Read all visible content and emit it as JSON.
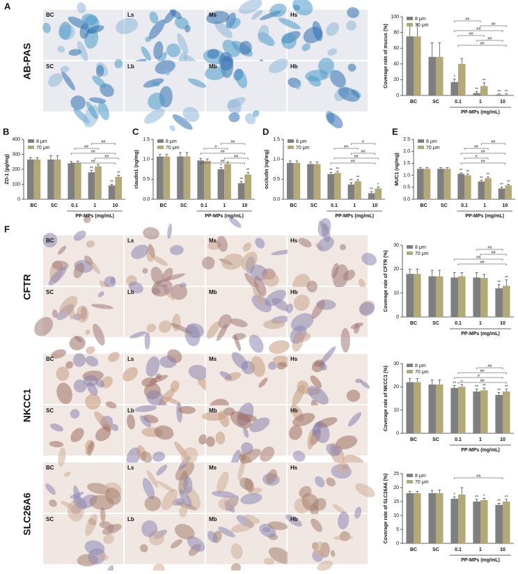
{
  "figure": {
    "panel_labels": [
      "A",
      "B",
      "C",
      "D",
      "E",
      "F"
    ],
    "stains": [
      {
        "name": "AB-PAS",
        "images": [
          [
            "BC",
            "Ls",
            "Ms",
            "Hs"
          ],
          [
            "SC",
            "Lb",
            "Mb",
            "Hb"
          ]
        ]
      },
      {
        "name": "CFTR",
        "images": [
          [
            "BC",
            "Ls",
            "Ms",
            "Hs"
          ],
          [
            "SC",
            "Lb",
            "Mb",
            "Hb"
          ]
        ]
      },
      {
        "name": "NKCC1",
        "images": [
          [
            "BC",
            "Ls",
            "Ms",
            "Hs"
          ],
          [
            "SC",
            "Lb",
            "Mb",
            "Hb"
          ]
        ]
      },
      {
        "name": "SLC26A6",
        "images": [
          [
            "BC",
            "Ls",
            "Ms",
            "Hs"
          ],
          [
            "SC",
            "Lb",
            "Mb",
            "Hb"
          ]
        ]
      }
    ]
  },
  "chart_data": [
    {
      "type": "bar",
      "y_label": "Coverage rate of mucus (%)",
      "x_label": "PP-MPs (mg/mL)",
      "categories": [
        "BC",
        "SC",
        "0.1",
        "1",
        "10"
      ],
      "ylim": [
        0,
        100
      ],
      "yticks": [
        0,
        20,
        40,
        60,
        80,
        100
      ],
      "series": [
        {
          "name": "8 μm",
          "color": "#7f7f7f",
          "values": [
            75,
            49,
            17,
            3,
            1
          ],
          "errors": [
            15,
            18,
            4,
            2,
            1
          ],
          "labels": [
            null,
            null,
            "*",
            "**",
            "**"
          ]
        },
        {
          "name": "70 μm",
          "color": "#b3a978",
          "values": [
            75,
            49,
            40,
            12,
            1
          ],
          "errors": [
            15,
            18,
            7,
            4,
            1
          ],
          "labels": [
            null,
            null,
            null,
            "**",
            "**"
          ]
        }
      ],
      "brackets": [
        {
          "between": [
            "0.1",
            "1"
          ],
          "label": "##"
        },
        {
          "between": [
            "1",
            "10"
          ],
          "label": "##"
        },
        {
          "between": [
            "0.1",
            "10"
          ],
          "label": "##"
        },
        {
          "between": [
            "0.1",
            "1"
          ],
          "label": "##"
        },
        {
          "between": [
            "1",
            "10"
          ],
          "label": "##"
        },
        {
          "between": [
            "0.1",
            "10"
          ],
          "label": "##"
        }
      ]
    },
    {
      "type": "bar",
      "y_label": "ZO-1 (pg/mg)",
      "x_label": "PP-MPs (mg/mL)",
      "categories": [
        "BC",
        "SC",
        "0.1",
        "1",
        "10"
      ],
      "ylim": [
        0,
        400
      ],
      "yticks": [
        0,
        100,
        200,
        300,
        400
      ],
      "series": [
        {
          "name": "8 μm",
          "color": "#7f7f7f",
          "values": [
            265,
            265,
            240,
            180,
            92
          ],
          "errors": [
            12,
            25,
            12,
            12,
            8
          ],
          "labels": [
            null,
            null,
            null,
            "**",
            "**"
          ]
        },
        {
          "name": "70 μm",
          "color": "#b3a978",
          "values": [
            265,
            265,
            240,
            220,
            150
          ],
          "errors": [
            12,
            25,
            15,
            12,
            10
          ],
          "labels": [
            null,
            null,
            null,
            null,
            "**"
          ]
        }
      ],
      "brackets": [
        {
          "between": [
            "1",
            "10"
          ],
          "label": "##"
        },
        {
          "between": [
            "0.1",
            "1"
          ],
          "label": "##"
        },
        {
          "between": [
            "0.1",
            "10"
          ],
          "label": "##"
        },
        {
          "between": [
            "1",
            "10"
          ],
          "label": "##"
        },
        {
          "between": [
            "0.1",
            "10"
          ],
          "label": "##"
        }
      ]
    },
    {
      "type": "bar",
      "y_label": "claudin1 (ng/mg)",
      "x_label": "PP-MPs (mg/mL)",
      "categories": [
        "BC",
        "SC",
        "0.1",
        "1",
        "10"
      ],
      "ylim": [
        0,
        1.5
      ],
      "yticks": [
        {
          "value": 0,
          "label": "0.0"
        },
        0.5,
        {
          "value": 1,
          "label": "1.0"
        },
        1.5
      ],
      "series": [
        {
          "name": "8 μm",
          "color": "#7f7f7f",
          "values": [
            1.07,
            1.07,
            0.97,
            0.75,
            0.4
          ],
          "errors": [
            0.05,
            0.1,
            0.05,
            0.04,
            0.04
          ],
          "labels": [
            null,
            null,
            null,
            "*",
            "**"
          ]
        },
        {
          "name": "70 μm",
          "color": "#b3a978",
          "values": [
            1.07,
            1.07,
            0.96,
            0.88,
            0.62
          ],
          "errors": [
            0.05,
            0.1,
            0.05,
            0.05,
            0.05
          ],
          "labels": [
            null,
            null,
            null,
            null,
            "**"
          ]
        }
      ],
      "brackets": [
        {
          "between": [
            "1",
            "10"
          ],
          "label": "##"
        },
        {
          "between": [
            "0.1",
            "1"
          ],
          "label": "#"
        },
        {
          "between": [
            "0.1",
            "10"
          ],
          "label": "##"
        },
        {
          "between": [
            "1",
            "10"
          ],
          "label": "##"
        },
        {
          "between": [
            "0.1",
            "10"
          ],
          "label": "##"
        }
      ]
    },
    {
      "type": "bar",
      "y_label": "occludin (ng/mg)",
      "x_label": "PP-MPs (mg/mL)",
      "categories": [
        "BC",
        "SC",
        "0.1",
        "1",
        "10"
      ],
      "ylim": [
        0,
        1.5
      ],
      "yticks": [
        {
          "value": 0,
          "label": "0.0"
        },
        0.5,
        {
          "value": 1,
          "label": "1.0"
        },
        1.5
      ],
      "series": [
        {
          "name": "8 μm",
          "color": "#7f7f7f",
          "values": [
            0.91,
            0.88,
            0.63,
            0.37,
            0.15
          ],
          "errors": [
            0.05,
            0.05,
            0.04,
            0.04,
            0.04
          ],
          "labels": [
            null,
            null,
            "**",
            "**",
            "**"
          ]
        },
        {
          "name": "70 μm",
          "color": "#b3a978",
          "values": [
            0.91,
            0.88,
            0.66,
            0.45,
            0.27
          ],
          "errors": [
            0.05,
            0.05,
            0.04,
            0.04,
            0.04
          ],
          "labels": [
            null,
            null,
            "**",
            "**",
            "*"
          ]
        }
      ],
      "brackets": [
        {
          "between": [
            "1",
            "10"
          ],
          "label": "#"
        },
        {
          "between": [
            "0.1",
            "1"
          ],
          "label": "##"
        },
        {
          "between": [
            "1",
            "10"
          ],
          "label": "##"
        },
        {
          "between": [
            "0.1",
            "10"
          ],
          "label": "##"
        },
        {
          "between": [
            "0.1",
            "10"
          ],
          "label": "##"
        }
      ]
    },
    {
      "type": "bar",
      "y_label": "MUC1 (ng/mg)",
      "x_label": "PP-MPs (mg/mL)",
      "categories": [
        "BC",
        "SC",
        "0.1",
        "1",
        "10"
      ],
      "ylim": [
        0,
        2.5
      ],
      "yticks": [
        {
          "value": 0,
          "label": "0.0"
        },
        0.5,
        {
          "value": 1,
          "label": "1.0"
        },
        1.5,
        {
          "value": 2,
          "label": "2.0"
        },
        2.5
      ],
      "series": [
        {
          "name": "8 μm",
          "color": "#7f7f7f",
          "values": [
            1.27,
            1.27,
            1.06,
            0.74,
            0.45
          ],
          "errors": [
            0.05,
            0.05,
            0.04,
            0.05,
            0.06
          ],
          "labels": [
            null,
            null,
            "**",
            "**",
            "**"
          ]
        },
        {
          "name": "70 μm",
          "color": "#b3a978",
          "values": [
            1.27,
            1.27,
            1.0,
            0.88,
            0.58
          ],
          "errors": [
            0.05,
            0.05,
            0.05,
            0.05,
            0.05
          ],
          "labels": [
            null,
            null,
            "**",
            "**",
            "**"
          ]
        }
      ],
      "brackets": [
        {
          "between": [
            "1",
            "10"
          ],
          "label": "##"
        },
        {
          "between": [
            "0.1",
            "1"
          ],
          "label": "##"
        },
        {
          "between": [
            "0.1",
            "10"
          ],
          "label": "##"
        },
        {
          "between": [
            "0.1",
            "1"
          ],
          "label": "#"
        },
        {
          "between": [
            "0.1",
            "10"
          ],
          "label": "##"
        }
      ]
    },
    {
      "type": "bar",
      "y_label": "Coverage rate of CFTR (%)",
      "x_label": "PP-MPs (mg/mL)",
      "categories": [
        "BC",
        "SC",
        "0.1",
        "1",
        "10"
      ],
      "ylim": [
        0,
        30
      ],
      "yticks": [
        0,
        10,
        20,
        30
      ],
      "series": [
        {
          "name": "8 μm",
          "color": "#7f7f7f",
          "values": [
            18,
            17,
            16.5,
            16.5,
            12
          ],
          "errors": [
            2,
            2.5,
            2,
            2,
            1.5
          ],
          "labels": [
            null,
            null,
            null,
            null,
            "**"
          ]
        },
        {
          "name": "70 μm",
          "color": "#b3a978",
          "values": [
            18,
            17,
            17,
            16.3,
            13
          ],
          "errors": [
            2,
            2.5,
            1.5,
            1.5,
            2.5
          ],
          "labels": [
            null,
            null,
            null,
            null,
            "**"
          ]
        }
      ],
      "brackets": [
        {
          "between": [
            "1",
            "10"
          ],
          "label": "##"
        },
        {
          "between": [
            "1",
            "10"
          ],
          "label": "##"
        },
        {
          "between": [
            "0.1",
            "10"
          ],
          "label": "##"
        },
        {
          "between": [
            "0.1",
            "10"
          ],
          "label": "##"
        }
      ]
    },
    {
      "type": "bar",
      "y_label": "Coverage rate of NKCC1 (%)",
      "x_label": "PP-MPs (mg/mL)",
      "categories": [
        "BC",
        "SC",
        "0.1",
        "1",
        "10"
      ],
      "ylim": [
        0,
        30
      ],
      "yticks": [
        0,
        10,
        20,
        30
      ],
      "series": [
        {
          "name": "8 μm",
          "color": "#7f7f7f",
          "values": [
            22,
            21,
            19.5,
            18,
            16.5
          ],
          "errors": [
            1.5,
            2,
            1,
            1,
            1
          ],
          "labels": [
            null,
            null,
            "**",
            "**",
            "**"
          ]
        },
        {
          "name": "70 μm",
          "color": "#b3a978",
          "values": [
            22,
            21,
            20,
            18.5,
            18
          ],
          "errors": [
            1.5,
            2,
            1,
            1,
            1
          ],
          "labels": [
            null,
            null,
            "*",
            "**",
            "**"
          ]
        }
      ],
      "brackets": [
        {
          "between": [
            "1",
            "10"
          ],
          "label": "##"
        },
        {
          "between": [
            "0.1",
            "10"
          ],
          "label": "##"
        },
        {
          "between": [
            "0.1",
            "10"
          ],
          "label": "#"
        },
        {
          "between": [
            "0.1",
            "10"
          ],
          "label": "##"
        }
      ]
    },
    {
      "type": "bar",
      "y_label": "Coverage rate of SLC26A6 (%)",
      "x_label": "PP-MPs (mg/mL)",
      "categories": [
        "BC",
        "SC",
        "0.1",
        "1",
        "10"
      ],
      "ylim": [
        0,
        25
      ],
      "yticks": [
        0,
        5,
        10,
        15,
        20,
        25
      ],
      "series": [
        {
          "name": "8 μm",
          "color": "#7f7f7f",
          "values": [
            18,
            18,
            16,
            15,
            13.8
          ],
          "errors": [
            0.7,
            1,
            0.7,
            0.8,
            0.6
          ],
          "labels": [
            null,
            null,
            "*",
            "**",
            "**"
          ]
        },
        {
          "name": "70 μm",
          "color": "#b3a978",
          "values": [
            18,
            18,
            17.5,
            15.5,
            15
          ],
          "errors": [
            0.7,
            1.2,
            2.5,
            0.6,
            0.8
          ],
          "labels": [
            null,
            null,
            null,
            "*",
            "**"
          ]
        }
      ],
      "brackets": [
        {
          "between": [
            "0.1",
            "10"
          ],
          "label": "##"
        }
      ]
    }
  ]
}
